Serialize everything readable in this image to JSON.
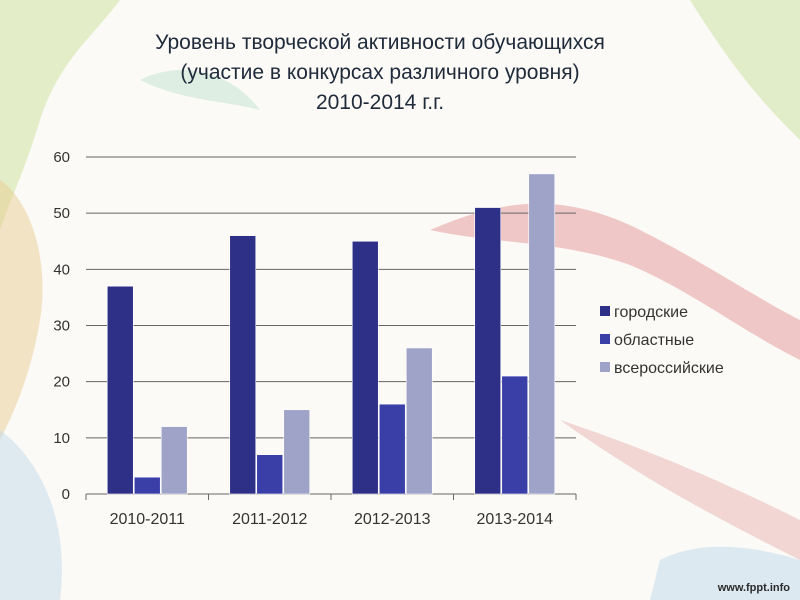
{
  "title": {
    "line1": "Уровень творческой активности обучающихся",
    "line2": "(участие в конкурсах различного уровня)",
    "line3": "2010-2014 г.г."
  },
  "watermark": "www.fppt.info",
  "chart_data": {
    "type": "bar",
    "title": "Уровень творческой активности обучающихся (участие в конкурсах различного уровня) 2010-2014 г.г.",
    "categories": [
      "2010-2011",
      "2011-2012",
      "2012-2013",
      "2013-2014"
    ],
    "series": [
      {
        "name": "городские",
        "values": [
          37,
          46,
          45,
          51
        ],
        "color": "#2e2f86"
      },
      {
        "name": "областные",
        "values": [
          3,
          7,
          16,
          21
        ],
        "color": "#3a3fa8"
      },
      {
        "name": "всероссийские",
        "values": [
          12,
          15,
          26,
          57
        ],
        "color": "#9fa3c8"
      }
    ],
    "ylim": [
      0,
      60
    ],
    "yticks": [
      0,
      10,
      20,
      30,
      40,
      50,
      60
    ],
    "grid": true,
    "legend_position": "right"
  }
}
